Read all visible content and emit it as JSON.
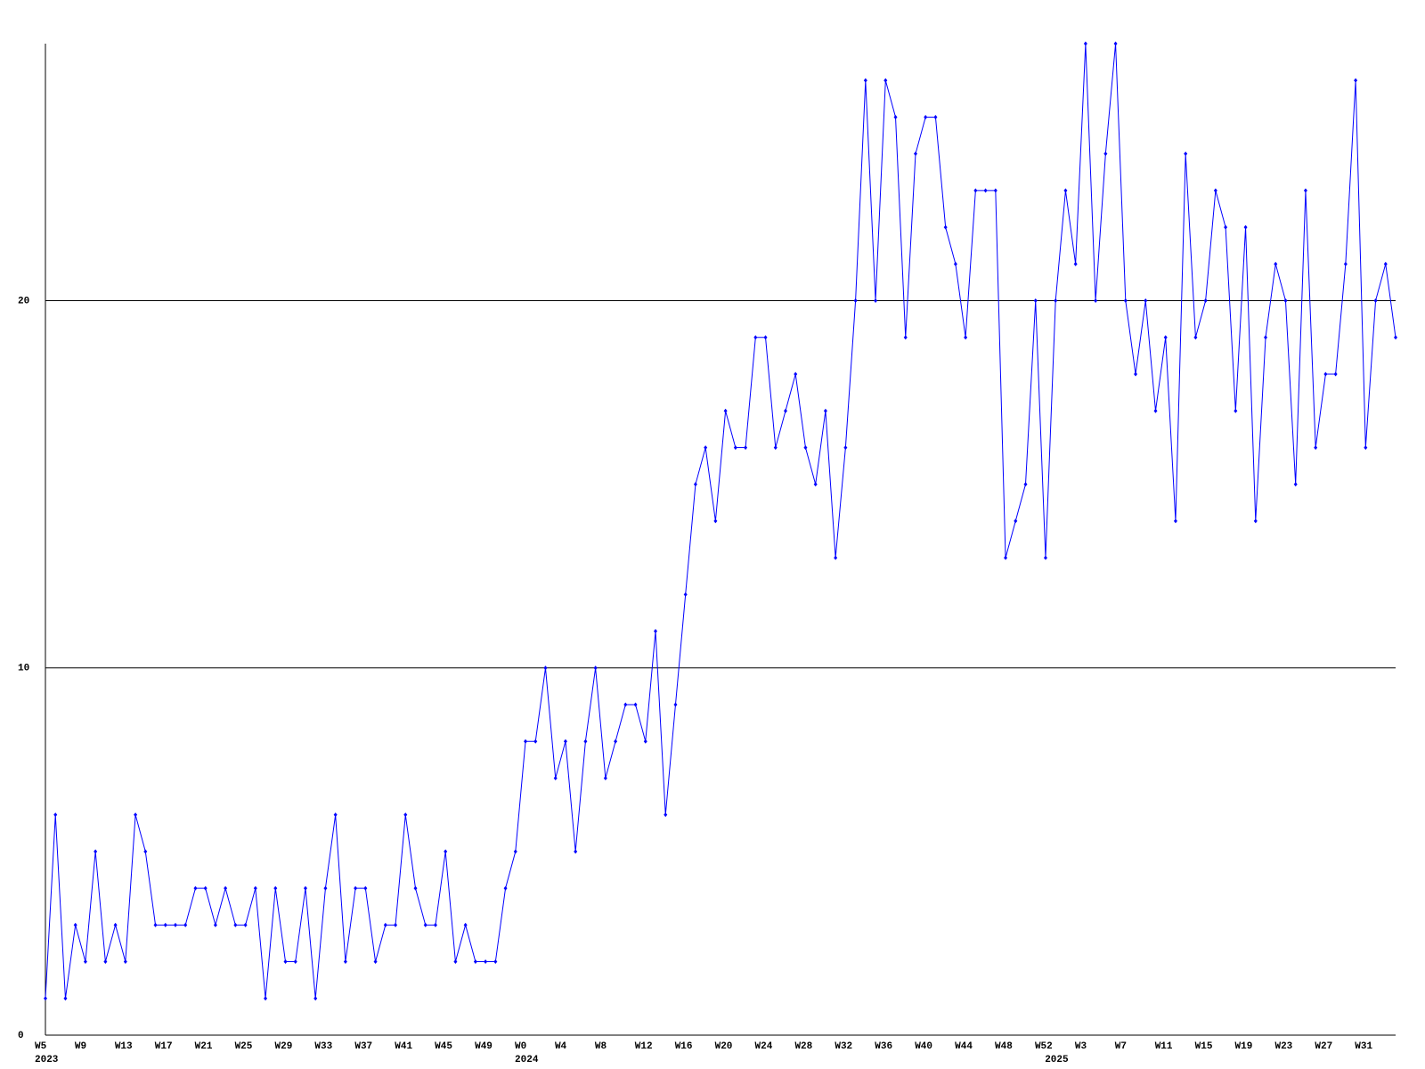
{
  "chart_data": {
    "type": "line",
    "categories": [
      "W5",
      null,
      null,
      null,
      "W9",
      null,
      null,
      null,
      "W13",
      null,
      null,
      null,
      "W17",
      null,
      null,
      null,
      "W21",
      null,
      null,
      null,
      "W25",
      null,
      null,
      null,
      "W29",
      null,
      null,
      null,
      "W33",
      null,
      null,
      null,
      "W37",
      null,
      null,
      null,
      "W41",
      null,
      null,
      null,
      "W45",
      null,
      null,
      null,
      "W49",
      null,
      null,
      null,
      "W0",
      null,
      null,
      null,
      "W4",
      null,
      null,
      null,
      "W8",
      null,
      null,
      null,
      "W12",
      null,
      null,
      null,
      "W16",
      null,
      null,
      null,
      "W20",
      null,
      null,
      null,
      "W24",
      null,
      null,
      null,
      "W28",
      null,
      null,
      null,
      "W32",
      null,
      null,
      null,
      "W36",
      null,
      null,
      null,
      "W40",
      null,
      null,
      null,
      "W44",
      null,
      null,
      null,
      "W48",
      null,
      null,
      null,
      "W52",
      null,
      null,
      null,
      "W3",
      null,
      null,
      null,
      "W7",
      null,
      null,
      null,
      "W11",
      null,
      null,
      null,
      "W15",
      null,
      null,
      null,
      "W19",
      null,
      null,
      null,
      "W23",
      null,
      null,
      null,
      "W27",
      null,
      null,
      null,
      "W31",
      null,
      null,
      null
    ],
    "year_labels": [
      {
        "index": 0,
        "label": "2023"
      },
      {
        "index": 48,
        "label": "2024"
      },
      {
        "index": 101,
        "label": "2025"
      }
    ],
    "values": [
      1,
      6,
      1,
      3,
      2,
      5,
      2,
      3,
      2,
      6,
      5,
      3,
      3,
      3,
      3,
      4,
      4,
      3,
      4,
      3,
      3,
      4,
      1,
      4,
      2,
      2,
      4,
      1,
      4,
      6,
      2,
      4,
      4,
      2,
      3,
      3,
      6,
      4,
      3,
      3,
      5,
      2,
      3,
      2,
      2,
      2,
      4,
      5,
      8,
      8,
      10,
      7,
      8,
      5,
      8,
      10,
      7,
      8,
      9,
      9,
      8,
      11,
      6,
      9,
      12,
      15,
      16,
      14,
      17,
      16,
      16,
      19,
      19,
      16,
      17,
      18,
      16,
      15,
      17,
      13,
      16,
      20,
      26,
      20,
      26,
      25,
      19,
      24,
      25,
      25,
      22,
      21,
      19,
      23,
      23,
      23,
      13,
      14,
      15,
      20,
      13,
      20,
      23,
      21,
      27,
      20,
      24,
      27,
      20,
      18,
      20,
      17,
      19,
      14,
      24,
      19,
      20,
      23,
      22,
      17,
      22,
      14,
      19,
      21,
      20,
      15,
      23,
      16,
      18,
      18,
      21,
      26,
      16,
      20,
      21,
      19
    ],
    "color": "#0000ff",
    "ylim": [
      0,
      27
    ],
    "yticks": [
      0,
      10,
      20
    ],
    "grid": true
  }
}
